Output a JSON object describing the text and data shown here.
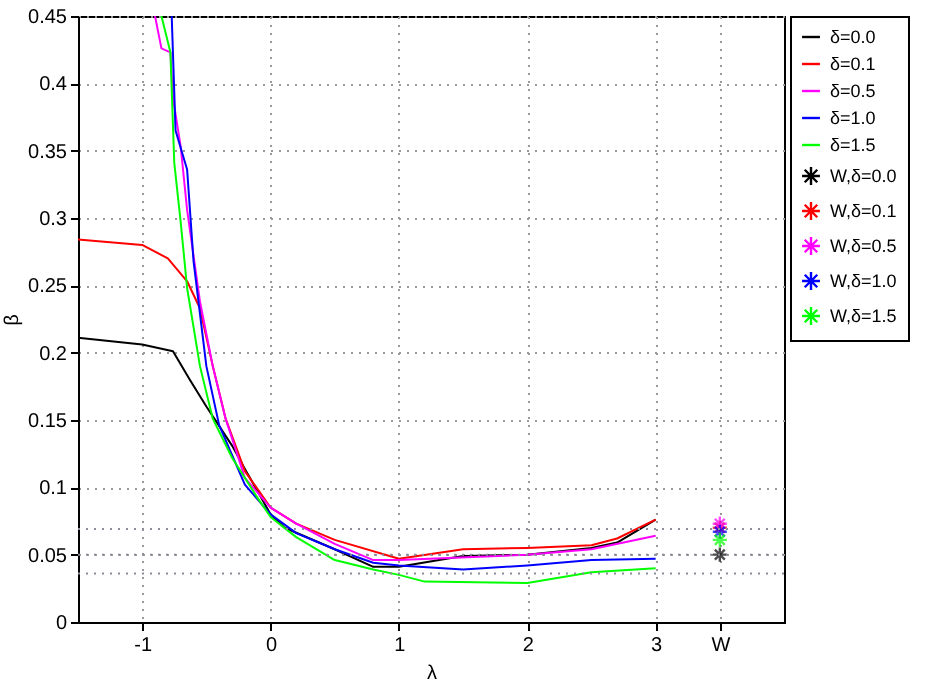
{
  "chart_data": {
    "type": "line",
    "xlabel": "λ",
    "ylabel": "β",
    "xlim": [
      -1.5,
      4
    ],
    "ylim": [
      0,
      0.45
    ],
    "xticks": [
      -1,
      0,
      1,
      2,
      3,
      {
        "value": 3.5,
        "label": "W"
      }
    ],
    "yticks": [
      0,
      0.05,
      0.1,
      0.15,
      0.2,
      0.25,
      0.3,
      0.35,
      0.4,
      0.45
    ],
    "grid": true,
    "legend": "right",
    "line_style": "solid",
    "ref_lines": [
      {
        "axis": "y",
        "value": 0.069,
        "color": "#8c8c9c",
        "line_style": "dotted"
      },
      {
        "axis": "y",
        "value": 0.05,
        "color": "#8c8c9c",
        "line_style": "dotted"
      },
      {
        "axis": "y",
        "value": 0.036,
        "color": "#8c8c9c",
        "line_style": "dotted"
      }
    ],
    "series": [
      {
        "name": "δ=0.0",
        "color": "#000000",
        "x": [
          -1.5,
          -1,
          -0.76,
          -0.63,
          -0.5,
          -0.3,
          -0.19,
          0,
          0.11,
          0.5,
          0.8,
          1,
          1.5,
          2,
          2.5,
          2.7,
          3
        ],
        "values": [
          0.211,
          0.206,
          0.201,
          0.18,
          0.16,
          0.131,
          0.112,
          0.08,
          0.07,
          0.054,
          0.041,
          0.041,
          0.049,
          0.05,
          0.055,
          0.059,
          0.076
        ]
      },
      {
        "name": "δ=0.1",
        "color": "#ff0000",
        "x": [
          -1.5,
          -1,
          -0.8,
          -0.65,
          -0.55,
          -0.45,
          -0.35,
          -0.2,
          0,
          0.2,
          0.5,
          1,
          1.5,
          2,
          2.5,
          2.7,
          3
        ],
        "values": [
          0.284,
          0.28,
          0.27,
          0.253,
          0.233,
          0.19,
          0.151,
          0.112,
          0.085,
          0.073,
          0.061,
          0.047,
          0.054,
          0.055,
          0.057,
          0.062,
          0.076
        ]
      },
      {
        "name": "δ=0.5",
        "color": "#ff00ff",
        "x": [
          -0.9,
          -0.85,
          -0.78,
          -0.76,
          -0.7,
          -0.65,
          -0.55,
          -0.45,
          -0.35,
          -0.2,
          0,
          0.2,
          0.5,
          0.8,
          1,
          2,
          2.5,
          3
        ],
        "values": [
          0.45,
          0.426,
          0.423,
          0.389,
          0.353,
          0.306,
          0.238,
          0.19,
          0.151,
          0.107,
          0.085,
          0.073,
          0.058,
          0.046,
          0.046,
          0.05,
          0.054,
          0.064
        ]
      },
      {
        "name": "δ=1.0",
        "color": "#0000ff",
        "x": [
          -0.77,
          -0.74,
          -0.65,
          -0.6,
          -0.5,
          -0.4,
          -0.2,
          0,
          0.2,
          0.5,
          0.8,
          1,
          1.5,
          2,
          2.5,
          3
        ],
        "values": [
          0.45,
          0.365,
          0.336,
          0.268,
          0.19,
          0.146,
          0.102,
          0.08,
          0.066,
          0.054,
          0.044,
          0.042,
          0.039,
          0.042,
          0.046,
          0.047
        ]
      },
      {
        "name": "δ=1.5",
        "color": "#00ff00",
        "x": [
          -0.85,
          -0.78,
          -0.75,
          -0.7,
          -0.65,
          -0.55,
          -0.45,
          -0.3,
          -0.1,
          0,
          0.2,
          0.5,
          0.8,
          1,
          1.2,
          2,
          2.5,
          3
        ],
        "values": [
          0.45,
          0.423,
          0.341,
          0.297,
          0.248,
          0.19,
          0.151,
          0.122,
          0.092,
          0.078,
          0.063,
          0.046,
          0.039,
          0.035,
          0.03,
          0.029,
          0.037,
          0.04
        ]
      },
      {
        "name": "W,δ=0.0",
        "type": "scatter",
        "marker": "cross",
        "color": "#000000",
        "x": [
          3.5
        ],
        "values": [
          0.05
        ]
      },
      {
        "name": "W,δ=0.1",
        "type": "scatter",
        "marker": "cross",
        "color": "#ff0000",
        "x": [
          3.5
        ],
        "values": [
          0.07
        ]
      },
      {
        "name": "W,δ=0.5",
        "type": "scatter",
        "marker": "cross",
        "color": "#ff00ff",
        "x": [
          3.5
        ],
        "values": [
          0.073
        ]
      },
      {
        "name": "W,δ=1.0",
        "type": "scatter",
        "marker": "cross",
        "color": "#0000ff",
        "x": [
          3.5
        ],
        "values": [
          0.067
        ]
      },
      {
        "name": "W,δ=1.5",
        "type": "scatter",
        "marker": "cross",
        "color": "#00ff00",
        "x": [
          3.5
        ],
        "values": [
          0.061
        ]
      }
    ]
  }
}
